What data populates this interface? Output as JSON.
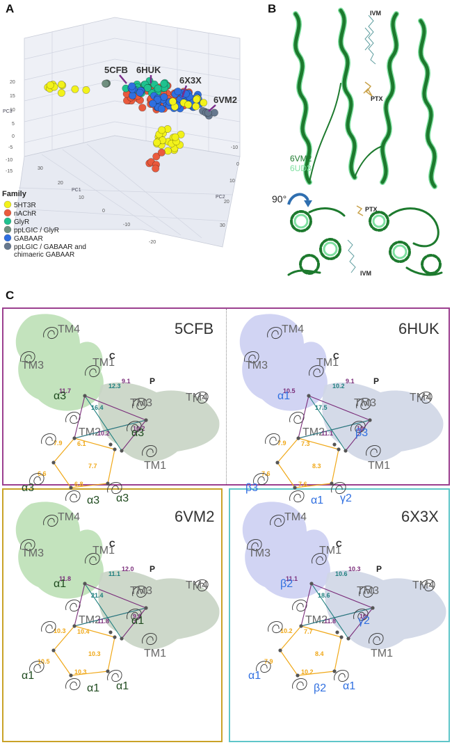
{
  "figure": {
    "panel_labels": {
      "a": "A",
      "b": "B",
      "c": "C"
    }
  },
  "panel_a": {
    "axis_labels": {
      "pc1": "PC1",
      "pc2": "PC2",
      "pc3": "PC3"
    },
    "ticks_pc3": [
      "20",
      "15",
      "10",
      "5",
      "0",
      "-5",
      "-10",
      "-15"
    ],
    "ticks_pc1": [
      "30",
      "20",
      "10",
      "0",
      "-10",
      "-20"
    ],
    "ticks_pc2": [
      "-10",
      "0",
      "10",
      "20",
      "30"
    ],
    "callouts": [
      "5CFB",
      "6HUK",
      "6X3X",
      "6VM2"
    ],
    "legend_title": "Family",
    "legend": [
      {
        "label": "5HT3R",
        "color": "#f2f21a"
      },
      {
        "label": "nAChR",
        "color": "#ea5a3d"
      },
      {
        "label": "GlyR",
        "color": "#1fc28f"
      },
      {
        "label": "ppLGIC / GlyR",
        "color": "#6f8f7f"
      },
      {
        "label": "GABAAR",
        "color": "#2f6fe0"
      },
      {
        "label": "ppLGIC / GABAAR and",
        "label2": "chimaeric GABAAR",
        "color": "#66788e"
      }
    ]
  },
  "panel_b": {
    "ligands": {
      "ivm": "IVM",
      "ptx": "PTX"
    },
    "structures": [
      {
        "label": "6VM2",
        "color": "#1d7a2e"
      },
      {
        "label": "6UD3",
        "color": "#7ee0a0"
      }
    ],
    "rotation": "90°"
  },
  "panel_c": {
    "subpanels": [
      {
        "id": "5CFB",
        "helices": [
          "TM4",
          "TM3",
          "TM1",
          "TM3",
          "TM4",
          "TM2",
          "TM1"
        ],
        "sides": [
          "C",
          "P"
        ],
        "subunits": [
          "α3",
          "α3",
          "α3",
          "α3",
          "α3"
        ],
        "distances_purple": [
          "9.1",
          "11.7",
          "10.2",
          "10.2"
        ],
        "distances_teal": [
          "12.3",
          "16.4"
        ],
        "distances_orange": [
          "7.9",
          "6.1",
          "7.7",
          "6.6",
          "6.8"
        ]
      },
      {
        "id": "6HUK",
        "helices": [
          "TM4",
          "TM3",
          "TM1",
          "TM3",
          "TM4",
          "TM2",
          "TM1"
        ],
        "sides": [
          "C",
          "P"
        ],
        "subunits": [
          "α1",
          "β3",
          "β3",
          "α1",
          "γ2"
        ],
        "distances_purple": [
          "9.1",
          "10.5",
          "11.1",
          "10"
        ],
        "distances_teal": [
          "10.2",
          "17.5"
        ],
        "distances_orange": [
          "7.9",
          "7.3",
          "8.3",
          "7.6",
          "7.6"
        ]
      },
      {
        "id": "6VM2",
        "helices": [
          "TM4",
          "TM3",
          "TM1",
          "TM3",
          "TM4",
          "TM2",
          "TM1"
        ],
        "sides": [
          "C",
          "P"
        ],
        "subunits": [
          "α1",
          "α1",
          "α1",
          "α1",
          "α1"
        ],
        "distances_purple": [
          "12.0",
          "11.8",
          "11.8",
          "9.8"
        ],
        "distances_teal": [
          "11.1",
          "21.4"
        ],
        "distances_orange": [
          "10.3",
          "10.4",
          "10.3",
          "10.5",
          "10.3"
        ]
      },
      {
        "id": "6X3X",
        "helices": [
          "TM4",
          "TM3",
          "TM1",
          "TM3",
          "TM4",
          "TM2",
          "TM1"
        ],
        "sides": [
          "C",
          "P"
        ],
        "subunits": [
          "β2",
          "γ2",
          "α1",
          "β2",
          "α1"
        ],
        "distances_purple": [
          "10.3",
          "11.1",
          "11.8",
          "10"
        ],
        "distances_teal": [
          "10.6",
          "18.6"
        ],
        "distances_orange": [
          "10.2",
          "7.7",
          "8.4",
          "7.9",
          "10.2"
        ]
      }
    ]
  }
}
